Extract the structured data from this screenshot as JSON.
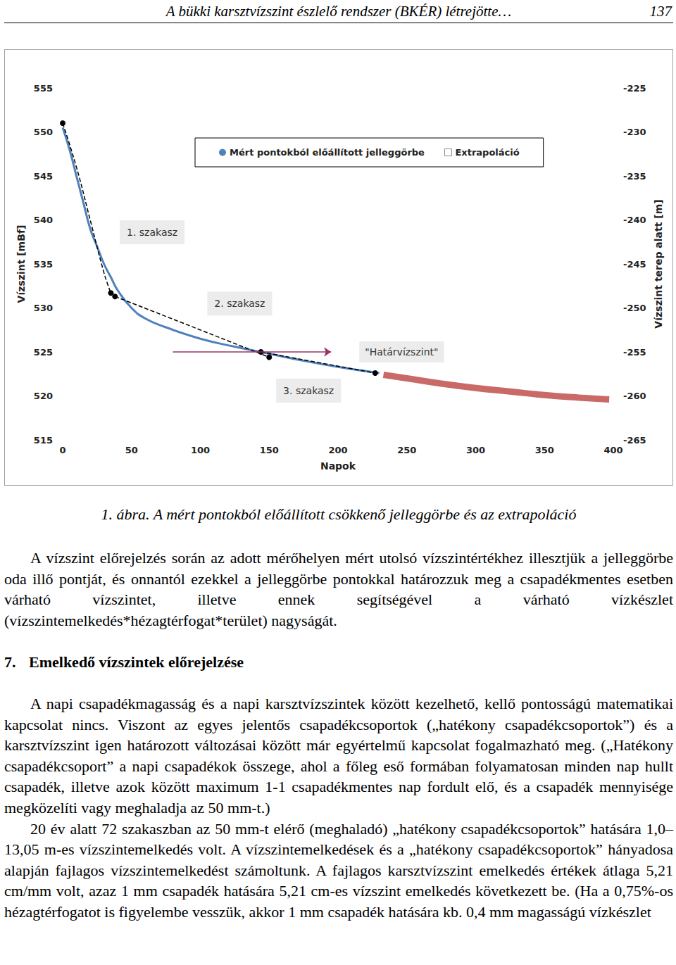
{
  "header": {
    "title": "A bükki karsztvízszint észlelő rendszer (BKÉR) létrejötte…",
    "page_number": "137"
  },
  "chart_data": {
    "type": "line",
    "x_label": "Napok",
    "y_label": "Vízszint [mBf]",
    "y2_label": "Vízszint terep alatt [m]",
    "xlim": [
      0,
      400
    ],
    "xticks": [
      0,
      50,
      100,
      150,
      200,
      250,
      300,
      350,
      400
    ],
    "ylim": [
      515,
      555
    ],
    "yticks": [
      515,
      520,
      525,
      530,
      535,
      540,
      545,
      550,
      555
    ],
    "y2lim": [
      -265,
      -225
    ],
    "y2ticks": [
      -265,
      -260,
      -255,
      -250,
      -245,
      -240,
      -235,
      -230,
      -225
    ],
    "grid": false,
    "legend": "top",
    "series": [
      {
        "name": "Mért pontokból előállított jelleggörbe",
        "color": "#4f81bd",
        "line_style": "solid",
        "x": [
          0,
          5,
          10,
          15,
          20,
          25,
          30,
          35,
          40,
          50,
          60,
          75,
          100,
          125,
          150,
          175,
          200,
          230
        ],
        "values": [
          550.5,
          548,
          545,
          542,
          539,
          537,
          535,
          533.5,
          532,
          530,
          528.8,
          527.8,
          526.5,
          525.6,
          524.8,
          524,
          523.3,
          522.6
        ]
      },
      {
        "name": "Extrapoláció",
        "color": "#c0504d",
        "line_style": "solid",
        "x": [
          233,
          250,
          275,
          300,
          325,
          350,
          375,
          397
        ],
        "values": [
          522.4,
          522,
          521.4,
          520.9,
          520.5,
          520.1,
          519.8,
          519.6
        ]
      }
    ],
    "segments": [
      {
        "name": "1. szakasz",
        "color": "#000000",
        "line_style": "dashed",
        "x": [
          0,
          10,
          20,
          30,
          35
        ],
        "values": [
          551,
          546,
          540,
          534,
          531.7
        ]
      },
      {
        "name": "2. szakasz",
        "color": "#000000",
        "line_style": "dashed",
        "x": [
          38,
          100,
          150
        ],
        "values": [
          531.3,
          527.5,
          524.4
        ]
      },
      {
        "name": "3. szakasz",
        "color": "#000000",
        "line_style": "dashed",
        "x": [
          144,
          227
        ],
        "values": [
          525,
          522.6
        ]
      }
    ],
    "threshold": {
      "label": "\"Határvízszint\"",
      "value": 525,
      "x": [
        80,
        195
      ],
      "color": "#993366"
    }
  },
  "caption": "1. ábra. A mért pontokból előállított csökkenő jelleggörbe és az extrapoláció",
  "body": [
    {
      "paragraph": "A vízszint előrejelzés során az adott mérőhelyen mért utolsó vízszintértékhez illesztjük a jelleggörbe oda illő pontját, és onnantól ezekkel a jelleggörbe pontokkal határozzuk meg a csapadékmentes esetben várható vízszintet, illetve ennek segítségével a várható vízkészlet (vízszintemelkedés*hézagtérfogat*terület) nagyságát."
    },
    {
      "heading": {
        "number": "7.",
        "title": "Emelkedő vízszintek előrejelzése"
      }
    },
    {
      "paragraph": "A napi csapadékmagasság és a napi karsztvízszintek között kezelhető, kellő pontosságú matematikai kapcsolat nincs. Viszont az egyes jelentős csapadékcsoportok („hatékony csapadékcsoportok”) és a karsztvízszint igen határozott változásai között már egyértelmű kapcsolat fogalmazható meg. („Hatékony csapadékcsoport” a napi csapadékok összege, ahol a főleg eső formában folyamatosan minden nap hullt csapadék, illetve azok között maximum 1-1 csapadékmentes nap fordult elő, és a csapadék mennyisége megközelíti vagy meghaladja az 50 mm-t.)"
    },
    {
      "paragraph": "20 év alatt 72 szakaszban az 50 mm-t elérő (meghaladó) „hatékony csapadékcsoportok” hatására 1,0–13,05 m-es vízszintemelkedés volt. A vízszintemelkedések és a „hatékony csapadékcsoportok” hányadosa alapján fajlagos vízszintemelkedést számoltunk. A fajlagos karsztvízszint emelkedés értékek átlaga 5,21 cm/mm volt, azaz 1 mm csapadék hatására 5,21 cm-es vízszint emelkedés következett be. (Ha a 0,75%-os hézagtérfogatot is figyelembe vesszük, akkor 1 mm csapadék hatására kb. 0,4 mm magasságú vízkészlet"
    }
  ]
}
